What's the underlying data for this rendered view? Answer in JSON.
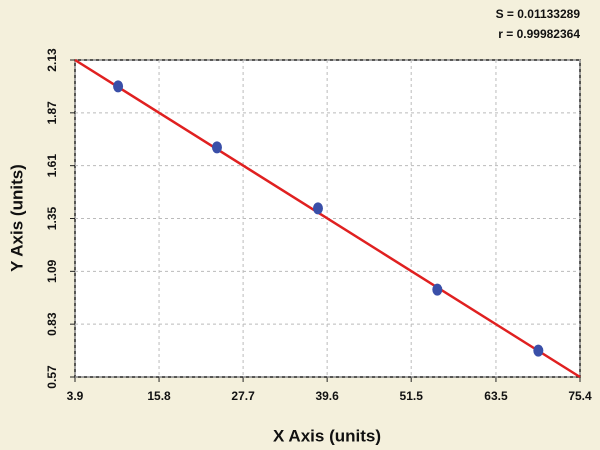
{
  "chart_data": {
    "type": "scatter",
    "annotations": [
      "S = 0.01133289",
      "r = 0.99982364"
    ],
    "x_label": "X Axis (units)",
    "y_label": "Y Axis (units)",
    "x": [
      10.0,
      24.0,
      38.3,
      55.2,
      69.5
    ],
    "values": [
      2.0,
      1.7,
      1.4,
      1.0,
      0.7
    ],
    "color": "#3a4fa8",
    "fit": {
      "x": [
        3.9,
        75.4
      ],
      "values": [
        2.13,
        0.57
      ],
      "color": "#e02020"
    },
    "xlim": [
      3.9,
      75.4
    ],
    "xticks": [
      3.9,
      15.8,
      27.7,
      39.6,
      51.5,
      63.5,
      75.4
    ],
    "ylim": [
      0.57,
      2.13
    ],
    "yticks": [
      0.57,
      0.83,
      1.09,
      1.35,
      1.61,
      1.87,
      2.13
    ],
    "grid": true
  }
}
